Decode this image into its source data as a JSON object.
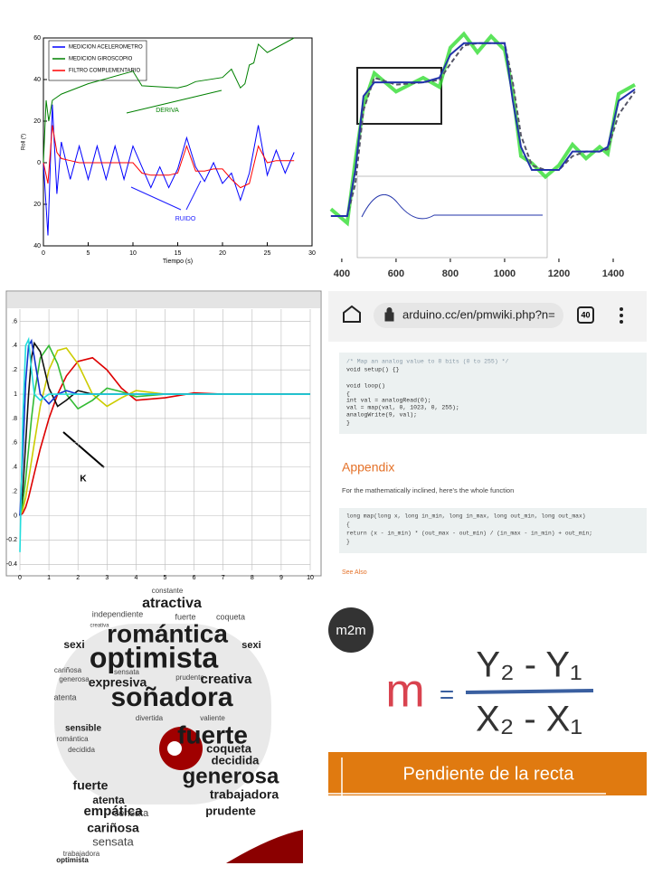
{
  "chart_data": [
    {
      "type": "line",
      "ylabel": "Roll (º)",
      "xlabel": "Tiempo (s)",
      "xlim": [
        0,
        30
      ],
      "ylim": [
        -40,
        60
      ],
      "xticks": [
        0,
        5,
        10,
        15,
        20,
        25,
        30
      ],
      "yticks": [
        {
          "value": -40,
          "label": "40"
        },
        {
          "value": -20,
          "label": "20"
        },
        0,
        20,
        40,
        60
      ],
      "legend": "upper-left",
      "annotations": [
        "DERIVA",
        "RUIDO"
      ],
      "series": [
        {
          "name": "MEDICION ACELEROMETRO",
          "color": "#0000ff",
          "x": [
            0,
            0.5,
            1,
            1.5,
            2,
            3,
            4,
            5,
            6,
            7,
            8,
            9,
            10,
            11,
            12,
            13,
            14,
            15,
            16,
            17,
            18,
            19,
            20,
            21,
            22,
            23,
            24,
            25,
            26,
            27,
            28
          ],
          "values": [
            0,
            -35,
            28,
            -15,
            10,
            -8,
            8,
            -8,
            8,
            -8,
            8,
            -8,
            8,
            -2,
            -12,
            -2,
            -12,
            -3,
            12,
            -2,
            -9,
            0,
            -10,
            -5,
            -18,
            -5,
            18,
            -6,
            6,
            -5,
            5
          ]
        },
        {
          "name": "MEDICION GIROSCOPIO",
          "color": "#008000",
          "x": [
            0,
            0.3,
            0.6,
            1,
            2,
            5,
            10,
            11,
            15,
            16,
            17,
            20,
            21,
            22,
            22.5,
            23,
            23.5,
            24,
            25,
            28
          ],
          "values": [
            0,
            30,
            20,
            30,
            33,
            38,
            44,
            37,
            36,
            37,
            39,
            41,
            45,
            36,
            38,
            47,
            48,
            57,
            53,
            60
          ]
        },
        {
          "name": "FILTRO COMPLEMENTARIO",
          "color": "#ff0000",
          "x": [
            0,
            0.5,
            1,
            1.5,
            2,
            3,
            4,
            5,
            6,
            7,
            8,
            9,
            10,
            11,
            12,
            13,
            14,
            15,
            16,
            17,
            18,
            19,
            20,
            21,
            22,
            23,
            24,
            25,
            26,
            27,
            28
          ],
          "values": [
            0,
            -10,
            18,
            5,
            2,
            1,
            0,
            0,
            0,
            0,
            0,
            0,
            0,
            -5,
            -6,
            -6,
            -6,
            -5,
            8,
            -4,
            -4,
            -3,
            -3,
            -8,
            -12,
            -10,
            8,
            0,
            1,
            1,
            1
          ]
        }
      ]
    },
    {
      "type": "line",
      "xlim": [
        357,
        1540
      ],
      "ylim": [
        0,
        100
      ],
      "xticks": [
        400,
        600,
        800,
        1000,
        1200,
        1400
      ],
      "series": [
        {
          "color": "#33dd33",
          "x": [
            360,
            420,
            450,
            480,
            520,
            600,
            700,
            760,
            800,
            850,
            900,
            950,
            1000,
            1030,
            1060,
            1100,
            1150,
            1200,
            1250,
            1300,
            1350,
            1380,
            1420,
            1480
          ],
          "values": [
            23,
            17,
            44,
            68,
            82,
            74,
            80,
            76,
            93,
            99,
            91,
            98,
            92,
            74,
            46,
            43,
            37,
            42,
            51,
            45,
            50,
            47,
            73,
            77
          ]
        },
        {
          "color": "#555566",
          "x": [
            360,
            420,
            450,
            480,
            520,
            600,
            700,
            760,
            800,
            850,
            900,
            950,
            1000,
            1030,
            1060,
            1100,
            1150,
            1200,
            1250,
            1300,
            1350,
            1380,
            1420,
            1480
          ],
          "values": [
            20,
            20,
            34,
            66,
            80,
            77,
            78,
            79,
            86,
            94,
            95,
            95,
            95,
            78,
            55,
            42,
            40,
            40,
            46,
            48,
            48,
            49,
            64,
            74
          ]
        },
        {
          "color": "#2233aa",
          "x": [
            360,
            420,
            450,
            480,
            520,
            600,
            700,
            760,
            800,
            850,
            900,
            950,
            1000,
            1030,
            1060,
            1100,
            1150,
            1200,
            1250,
            1300,
            1350,
            1380,
            1420,
            1480
          ],
          "values": [
            20,
            20,
            40,
            72,
            78,
            78,
            78,
            80,
            90,
            95,
            95,
            95,
            95,
            70,
            50,
            40,
            40,
            40,
            48,
            48,
            48,
            50,
            70,
            75
          ]
        }
      ]
    },
    {
      "type": "line",
      "xlim": [
        0,
        10
      ],
      "ylim": [
        -0.45,
        1.7
      ],
      "grid": true,
      "annotations": [
        "K"
      ],
      "xticks": [
        0,
        1,
        2,
        3,
        4,
        5,
        6,
        7,
        8,
        9,
        10
      ],
      "yticks": [
        {
          "value": 1.6,
          "label": ".6"
        },
        {
          "value": 1.4,
          "label": ".4"
        },
        {
          "value": 1.2,
          "label": ".2"
        },
        1,
        {
          "value": 0.8,
          "label": ".8"
        },
        {
          "value": 0.6,
          "label": ".6"
        },
        {
          "value": 0.4,
          "label": ".4"
        },
        {
          "value": 0.2,
          "label": ".2"
        },
        0,
        -0.2,
        -0.4
      ],
      "series": [
        {
          "color": "#dd0000",
          "x": [
            0,
            0.1,
            0.2,
            0.3,
            0.4,
            0.5,
            0.7,
            1,
            1.3,
            1.6,
            2,
            2.5,
            3,
            3.5,
            4,
            5,
            6,
            7,
            8,
            10
          ],
          "values": [
            0,
            0.02,
            0.07,
            0.15,
            0.25,
            0.35,
            0.55,
            0.8,
            1.0,
            1.15,
            1.27,
            1.3,
            1.2,
            1.05,
            0.95,
            0.97,
            1.01,
            1,
            1,
            1
          ]
        },
        {
          "color": "#cccc00",
          "x": [
            0,
            0.1,
            0.2,
            0.3,
            0.4,
            0.5,
            0.7,
            1,
            1.3,
            1.6,
            2,
            2.5,
            3,
            3.5,
            4,
            5,
            6,
            7,
            8,
            10
          ],
          "values": [
            0,
            0.05,
            0.15,
            0.3,
            0.45,
            0.6,
            0.9,
            1.2,
            1.36,
            1.38,
            1.25,
            1.0,
            0.9,
            0.97,
            1.03,
            1.0,
            1,
            1,
            1,
            1
          ]
        },
        {
          "color": "#33bb33",
          "x": [
            0,
            0.1,
            0.2,
            0.3,
            0.4,
            0.5,
            0.7,
            1,
            1.3,
            1.6,
            2,
            2.5,
            3,
            3.5,
            4,
            5,
            6,
            7,
            8,
            10
          ],
          "values": [
            0,
            0.1,
            0.3,
            0.55,
            0.8,
            1.0,
            1.3,
            1.4,
            1.25,
            1.0,
            0.88,
            0.95,
            1.05,
            1.02,
            0.98,
            1,
            1,
            1,
            1,
            1
          ]
        },
        {
          "color": "#111111",
          "x": [
            0,
            0.1,
            0.2,
            0.3,
            0.4,
            0.5,
            0.7,
            1,
            1.3,
            1.6,
            2,
            2.5,
            3,
            3.5,
            4,
            5,
            6,
            7,
            8,
            10
          ],
          "values": [
            0,
            0.2,
            0.6,
            1.0,
            1.3,
            1.42,
            1.35,
            1.05,
            0.9,
            0.95,
            1.03,
            1.0,
            1,
            1,
            1,
            1,
            1,
            1,
            1,
            1
          ]
        },
        {
          "color": "#1133cc",
          "x": [
            0,
            0.1,
            0.2,
            0.3,
            0.4,
            0.5,
            0.7,
            1,
            1.3,
            1.6,
            2,
            2.5,
            3,
            3.5,
            4,
            5,
            6,
            7,
            8,
            10
          ],
          "values": [
            0,
            0.5,
            1.1,
            1.4,
            1.44,
            1.3,
            1.0,
            0.92,
            1.0,
            1.03,
            1.0,
            1,
            1,
            1,
            1,
            1,
            1,
            1,
            1,
            1
          ]
        },
        {
          "color": "#22dddd",
          "x": [
            0,
            0.1,
            0.2,
            0.3,
            0.4,
            0.5,
            0.7,
            1,
            1.3,
            1.6,
            2,
            2.5,
            3,
            3.5,
            4,
            5,
            6,
            7,
            8,
            10
          ],
          "values": [
            -0.3,
            0.8,
            1.4,
            1.45,
            1.2,
            1.0,
            0.95,
            1.0,
            1.0,
            1.0,
            1.0,
            1,
            1,
            1,
            1,
            1,
            1,
            1,
            1,
            1
          ]
        }
      ]
    }
  ],
  "browser": {
    "url": "arduino.cc/en/pmwiki.php?n=",
    "tabs": "40",
    "code1": [
      "/* Map an analog value to 8 bits (0 to 255) */",
      "void setup() {}",
      "void loop()",
      "{",
      "  int val = analogRead(0);",
      "  val = map(val, 0, 1023, 0, 255);",
      "  analogWrite(9, val);",
      "}"
    ],
    "heading": "Appendix",
    "paragraph": "For the mathematically inclined, here's the whole function",
    "code2": [
      "long map(long x, long in_min, long in_max, long out_min, long out_max)",
      "{",
      "  return (x - in_min) * (out_max - out_min) / (in_max - in_min) + out_min;",
      "}"
    ],
    "link": "See Also"
  },
  "wordcloud": {
    "words": [
      "constante",
      "atractiva",
      "independiente",
      "fuerte",
      "coqueta",
      "creativa",
      "romántica",
      "sexi",
      "sexi",
      "optimista",
      "cariñosa",
      "sensata",
      "generosa",
      "expresiva",
      "prudente",
      "creativa",
      "atenta",
      "soñadora",
      "divertida",
      "sensible",
      "valiente",
      "romántica",
      "decidida",
      "fuerte",
      "coqueta",
      "decidida",
      "generosa",
      "trabajadora",
      "fuerte",
      "prudente",
      "atenta",
      "sensata",
      "empática",
      "cariñosa",
      "sensata",
      "trabajadora",
      "optimista"
    ]
  },
  "slope": {
    "logo": "m2m",
    "symbol": "m",
    "equals": "=",
    "numerator": "Y₂ - Y₁",
    "denominator": "X₂ - X₁",
    "caption": "Pendiente de la recta"
  }
}
